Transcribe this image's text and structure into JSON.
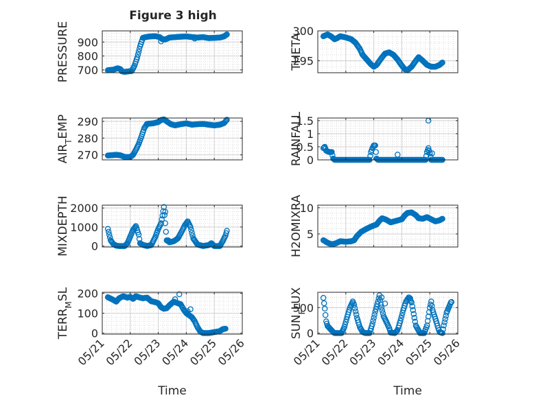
{
  "figure": {
    "title": "Figure 3 high",
    "marker_color": "#0072bd",
    "x_tick_labels": [
      "05/21",
      "05/22",
      "05/23",
      "05/24",
      "05/25",
      "05/26"
    ],
    "x_label": "Time"
  },
  "chart_data": [
    {
      "type": "scatter",
      "name": "pressure",
      "col": 0,
      "row": 0,
      "ylabel_main": "PRESSURE",
      "ylabel_sub": "",
      "ylim": [
        680,
        980
      ],
      "yticks": [
        700,
        800,
        900
      ],
      "yticklabels": [
        "700",
        "800",
        "900"
      ],
      "xlim": [
        0,
        5
      ],
      "grid": true,
      "anchors": [
        [
          0.2,
          698
        ],
        [
          0.4,
          702
        ],
        [
          0.55,
          712
        ],
        [
          0.65,
          705
        ],
        [
          0.7,
          690
        ],
        [
          0.8,
          686
        ],
        [
          0.95,
          690
        ],
        [
          1.05,
          692
        ],
        [
          1.15,
          730
        ],
        [
          1.25,
          790
        ],
        [
          1.35,
          870
        ],
        [
          1.45,
          930
        ],
        [
          1.55,
          935
        ],
        [
          1.7,
          940
        ],
        [
          1.9,
          942
        ],
        [
          2.05,
          935
        ],
        [
          2.15,
          920
        ],
        [
          2.25,
          918
        ],
        [
          2.4,
          932
        ],
        [
          2.6,
          935
        ],
        [
          2.8,
          938
        ],
        [
          3.0,
          940
        ],
        [
          3.2,
          935
        ],
        [
          3.4,
          932
        ],
        [
          3.6,
          935
        ],
        [
          3.8,
          928
        ],
        [
          4.0,
          930
        ],
        [
          4.2,
          932
        ],
        [
          4.35,
          940
        ],
        [
          4.45,
          955
        ]
      ],
      "extras": [
        [
          2.1,
          905
        ],
        [
          3.3,
          925
        ]
      ]
    },
    {
      "type": "scatter",
      "name": "theta",
      "col": 1,
      "row": 0,
      "ylabel_main": "THETA",
      "ylabel_sub": "",
      "ylim": [
        293,
        300
      ],
      "yticks": [
        295,
        300
      ],
      "yticklabels": [
        "295",
        "300"
      ],
      "xlim": [
        0,
        5
      ],
      "grid": true,
      "anchors": [
        [
          0.2,
          299.1
        ],
        [
          0.35,
          299.4
        ],
        [
          0.5,
          299.0
        ],
        [
          0.6,
          298.6
        ],
        [
          0.7,
          298.8
        ],
        [
          0.8,
          299.1
        ],
        [
          1.0,
          298.9
        ],
        [
          1.2,
          298.6
        ],
        [
          1.35,
          298.0
        ],
        [
          1.5,
          297.0
        ],
        [
          1.6,
          296.0
        ],
        [
          1.75,
          295.2
        ],
        [
          1.9,
          294.4
        ],
        [
          2.0,
          294.0
        ],
        [
          2.1,
          294.3
        ],
        [
          2.25,
          295.3
        ],
        [
          2.4,
          296.2
        ],
        [
          2.55,
          296.4
        ],
        [
          2.7,
          296.0
        ],
        [
          2.85,
          295.2
        ],
        [
          3.0,
          294.2
        ],
        [
          3.1,
          293.6
        ],
        [
          3.2,
          293.4
        ],
        [
          3.35,
          294.0
        ],
        [
          3.5,
          295.0
        ],
        [
          3.6,
          295.6
        ],
        [
          3.75,
          295.0
        ],
        [
          3.9,
          294.3
        ],
        [
          4.05,
          294.0
        ],
        [
          4.2,
          294.0
        ],
        [
          4.35,
          294.3
        ],
        [
          4.45,
          294.7
        ]
      ],
      "extras": []
    },
    {
      "type": "scatter",
      "name": "air_temp",
      "col": 0,
      "row": 1,
      "ylabel_main": "AIR",
      "ylabel_sub": "T",
      "ylabel_tail": "EMP",
      "ylim": [
        267,
        292
      ],
      "yticks": [
        270,
        280,
        290
      ],
      "yticklabels": [
        "270",
        "280",
        "290"
      ],
      "xlim": [
        0,
        5
      ],
      "grid": true,
      "anchors": [
        [
          0.2,
          269.6
        ],
        [
          0.5,
          270.0
        ],
        [
          0.65,
          269.7
        ],
        [
          0.8,
          268.7
        ],
        [
          1.0,
          268.7
        ],
        [
          1.1,
          270.0
        ],
        [
          1.2,
          273.0
        ],
        [
          1.3,
          276.5
        ],
        [
          1.4,
          281.0
        ],
        [
          1.5,
          286.0
        ],
        [
          1.6,
          288.5
        ],
        [
          1.8,
          288.8
        ],
        [
          2.0,
          289.6
        ],
        [
          2.1,
          290.8
        ],
        [
          2.2,
          291.2
        ],
        [
          2.3,
          290.0
        ],
        [
          2.45,
          288.3
        ],
        [
          2.6,
          287.6
        ],
        [
          2.8,
          288.3
        ],
        [
          3.0,
          288.8
        ],
        [
          3.2,
          288.0
        ],
        [
          3.4,
          288.3
        ],
        [
          3.6,
          288.5
        ],
        [
          3.8,
          288.0
        ],
        [
          4.0,
          287.6
        ],
        [
          4.2,
          288.0
        ],
        [
          4.35,
          289.0
        ],
        [
          4.45,
          291.0
        ]
      ],
      "extras": []
    },
    {
      "type": "scatter",
      "name": "rainfall",
      "col": 1,
      "row": 1,
      "ylabel_main": "RAINFALL",
      "ylabel_sub": "",
      "ylim": [
        0,
        1.6
      ],
      "yticks": [
        0,
        0.5,
        1,
        1.5
      ],
      "yticklabels": [
        "0",
        "0.5",
        "1",
        "1.5"
      ],
      "xlim": [
        0,
        5
      ],
      "grid": true,
      "anchors": [
        [
          0.2,
          0.45
        ],
        [
          0.25,
          0.5
        ],
        [
          0.3,
          0.35
        ],
        [
          0.4,
          0.3
        ],
        [
          0.5,
          0.3
        ],
        [
          0.55,
          0.05
        ],
        [
          0.6,
          0.0
        ],
        [
          1.85,
          0.0
        ],
        [
          1.9,
          0.3
        ],
        [
          1.95,
          0.45
        ],
        [
          2.0,
          0.55
        ],
        [
          2.05,
          0.55
        ],
        [
          2.1,
          0.05
        ],
        [
          2.15,
          0.0
        ],
        [
          3.85,
          0.0
        ],
        [
          3.9,
          0.3
        ],
        [
          3.95,
          0.45
        ],
        [
          4.0,
          0.25
        ],
        [
          4.05,
          0.0
        ],
        [
          4.45,
          0.0
        ]
      ],
      "extras": [
        [
          2.85,
          0.2
        ],
        [
          3.95,
          1.5
        ],
        [
          4.08,
          0.25
        ]
      ]
    },
    {
      "type": "scatter",
      "name": "mixdepth",
      "col": 0,
      "row": 2,
      "ylabel_main": "MIXDEPTH",
      "ylabel_sub": "",
      "ylim": [
        -50,
        2150
      ],
      "yticks": [
        0,
        1000,
        2000
      ],
      "yticklabels": [
        "0",
        "1000",
        "2000"
      ],
      "xlim": [
        0,
        5
      ],
      "grid": true,
      "anchors": [
        [
          0.2,
          900
        ],
        [
          0.25,
          600
        ],
        [
          0.3,
          300
        ],
        [
          0.4,
          100
        ],
        [
          0.5,
          20
        ],
        [
          0.6,
          0
        ],
        [
          0.8,
          0
        ],
        [
          0.9,
          150
        ],
        [
          1.0,
          500
        ],
        [
          1.1,
          850
        ],
        [
          1.2,
          1050
        ],
        [
          1.3,
          600
        ],
        [
          1.35,
          150
        ],
        [
          1.45,
          60
        ],
        [
          1.6,
          0
        ],
        [
          1.75,
          50
        ],
        [
          1.9,
          500
        ],
        [
          2.0,
          900
        ],
        [
          2.1,
          1200
        ],
        [
          2.15,
          1600
        ],
        [
          2.2,
          2050
        ],
        [
          2.25,
          1200
        ],
        [
          2.3,
          300
        ],
        [
          2.4,
          200
        ],
        [
          2.55,
          250
        ],
        [
          2.7,
          400
        ],
        [
          2.85,
          800
        ],
        [
          2.95,
          1100
        ],
        [
          3.05,
          1300
        ],
        [
          3.15,
          1000
        ],
        [
          3.25,
          400
        ],
        [
          3.4,
          80
        ],
        [
          3.6,
          0
        ],
        [
          3.8,
          50
        ],
        [
          3.9,
          150
        ],
        [
          4.0,
          0
        ],
        [
          4.2,
          0
        ],
        [
          4.3,
          250
        ],
        [
          4.4,
          550
        ],
        [
          4.45,
          800
        ]
      ],
      "extras": [
        [
          2.25,
          1800
        ],
        [
          2.35,
          300
        ]
      ]
    },
    {
      "type": "scatter",
      "name": "h2omixra",
      "col": 1,
      "row": 2,
      "ylabel_main": "H2OMIXRA",
      "ylabel_sub": "",
      "ylim": [
        2.5,
        10.5
      ],
      "yticks": [
        5,
        10
      ],
      "yticklabels": [
        "5",
        "10"
      ],
      "xlim": [
        0,
        5
      ],
      "grid": true,
      "anchors": [
        [
          0.2,
          3.8
        ],
        [
          0.35,
          3.3
        ],
        [
          0.5,
          3.0
        ],
        [
          0.65,
          3.2
        ],
        [
          0.8,
          3.6
        ],
        [
          1.0,
          3.5
        ],
        [
          1.2,
          3.6
        ],
        [
          1.3,
          3.8
        ],
        [
          1.4,
          4.6
        ],
        [
          1.55,
          5.4
        ],
        [
          1.75,
          6.0
        ],
        [
          1.95,
          6.5
        ],
        [
          2.1,
          6.8
        ],
        [
          2.2,
          7.5
        ],
        [
          2.3,
          8.0
        ],
        [
          2.45,
          7.7
        ],
        [
          2.6,
          7.2
        ],
        [
          2.8,
          7.5
        ],
        [
          3.0,
          7.8
        ],
        [
          3.1,
          8.5
        ],
        [
          3.2,
          9.0
        ],
        [
          3.35,
          9.1
        ],
        [
          3.5,
          8.6
        ],
        [
          3.6,
          8.0
        ],
        [
          3.75,
          7.9
        ],
        [
          3.9,
          8.2
        ],
        [
          4.05,
          7.8
        ],
        [
          4.2,
          7.4
        ],
        [
          4.35,
          7.6
        ],
        [
          4.45,
          7.9
        ]
      ],
      "extras": []
    },
    {
      "type": "scatter",
      "name": "terr_msl",
      "col": 0,
      "row": 3,
      "ylabel_main": "TERR",
      "ylabel_sub": "M",
      "ylabel_tail": "SL",
      "ylim": [
        -5,
        205
      ],
      "yticks": [
        0,
        100,
        200
      ],
      "yticklabels": [
        "0",
        "100",
        "200"
      ],
      "xlim": [
        0,
        5
      ],
      "grid": true,
      "anchors": [
        [
          0.2,
          180
        ],
        [
          0.35,
          170
        ],
        [
          0.5,
          158
        ],
        [
          0.6,
          175
        ],
        [
          0.75,
          185
        ],
        [
          0.9,
          178
        ],
        [
          1.0,
          182
        ],
        [
          1.1,
          172
        ],
        [
          1.2,
          185
        ],
        [
          1.3,
          180
        ],
        [
          1.45,
          175
        ],
        [
          1.6,
          178
        ],
        [
          1.75,
          160
        ],
        [
          1.9,
          155
        ],
        [
          2.0,
          150
        ],
        [
          2.1,
          130
        ],
        [
          2.2,
          122
        ],
        [
          2.3,
          125
        ],
        [
          2.4,
          140
        ],
        [
          2.55,
          158
        ],
        [
          2.7,
          150
        ],
        [
          2.8,
          145
        ],
        [
          2.9,
          120
        ],
        [
          3.0,
          100
        ],
        [
          3.1,
          90
        ],
        [
          3.2,
          80
        ],
        [
          3.3,
          60
        ],
        [
          3.4,
          30
        ],
        [
          3.5,
          8
        ],
        [
          3.6,
          0
        ],
        [
          3.8,
          0
        ],
        [
          4.0,
          5
        ],
        [
          4.2,
          10
        ],
        [
          4.3,
          20
        ],
        [
          4.4,
          22
        ]
      ],
      "extras": [
        [
          2.6,
          170
        ],
        [
          2.75,
          195
        ],
        [
          3.05,
          110
        ],
        [
          3.15,
          120
        ]
      ]
    },
    {
      "type": "scatter",
      "name": "sun_flux",
      "col": 1,
      "row": 3,
      "ylabel_main": "SUN",
      "ylabel_sub": "F",
      "ylabel_tail": "LUX",
      "ylim": [
        -20,
        800
      ],
      "yticks": [
        0,
        500
      ],
      "yticklabels": [
        "0",
        "500"
      ],
      "xlim": [
        0,
        5
      ],
      "grid": true,
      "anchors": [
        [
          0.2,
          690
        ],
        [
          0.25,
          480
        ],
        [
          0.3,
          230
        ],
        [
          0.35,
          140
        ],
        [
          0.45,
          80
        ],
        [
          0.55,
          20
        ],
        [
          0.6,
          0
        ],
        [
          0.85,
          0
        ],
        [
          0.95,
          120
        ],
        [
          1.05,
          320
        ],
        [
          1.15,
          500
        ],
        [
          1.25,
          620
        ],
        [
          1.3,
          550
        ],
        [
          1.4,
          300
        ],
        [
          1.5,
          120
        ],
        [
          1.6,
          20
        ],
        [
          1.7,
          0
        ],
        [
          1.85,
          0
        ],
        [
          1.95,
          180
        ],
        [
          2.05,
          420
        ],
        [
          2.15,
          620
        ],
        [
          2.2,
          740
        ],
        [
          2.25,
          560
        ],
        [
          2.35,
          330
        ],
        [
          2.45,
          220
        ],
        [
          2.55,
          100
        ],
        [
          2.6,
          10
        ],
        [
          2.75,
          0
        ],
        [
          2.85,
          60
        ],
        [
          2.95,
          240
        ],
        [
          3.05,
          450
        ],
        [
          3.15,
          620
        ],
        [
          3.25,
          700
        ],
        [
          3.35,
          600
        ],
        [
          3.45,
          300
        ],
        [
          3.5,
          150
        ],
        [
          3.6,
          50
        ],
        [
          3.65,
          0
        ],
        [
          3.8,
          0
        ],
        [
          3.9,
          150
        ],
        [
          4.0,
          500
        ],
        [
          4.05,
          620
        ],
        [
          4.1,
          450
        ],
        [
          4.2,
          280
        ],
        [
          4.3,
          100
        ],
        [
          4.35,
          20
        ],
        [
          4.45,
          0
        ],
        [
          4.5,
          150
        ],
        [
          4.6,
          400
        ],
        [
          4.75,
          600
        ],
        [
          4.8,
          620
        ]
      ],
      "extras": [
        [
          2.28,
          700
        ],
        [
          2.4,
          580
        ],
        [
          3.3,
          680
        ]
      ]
    }
  ]
}
